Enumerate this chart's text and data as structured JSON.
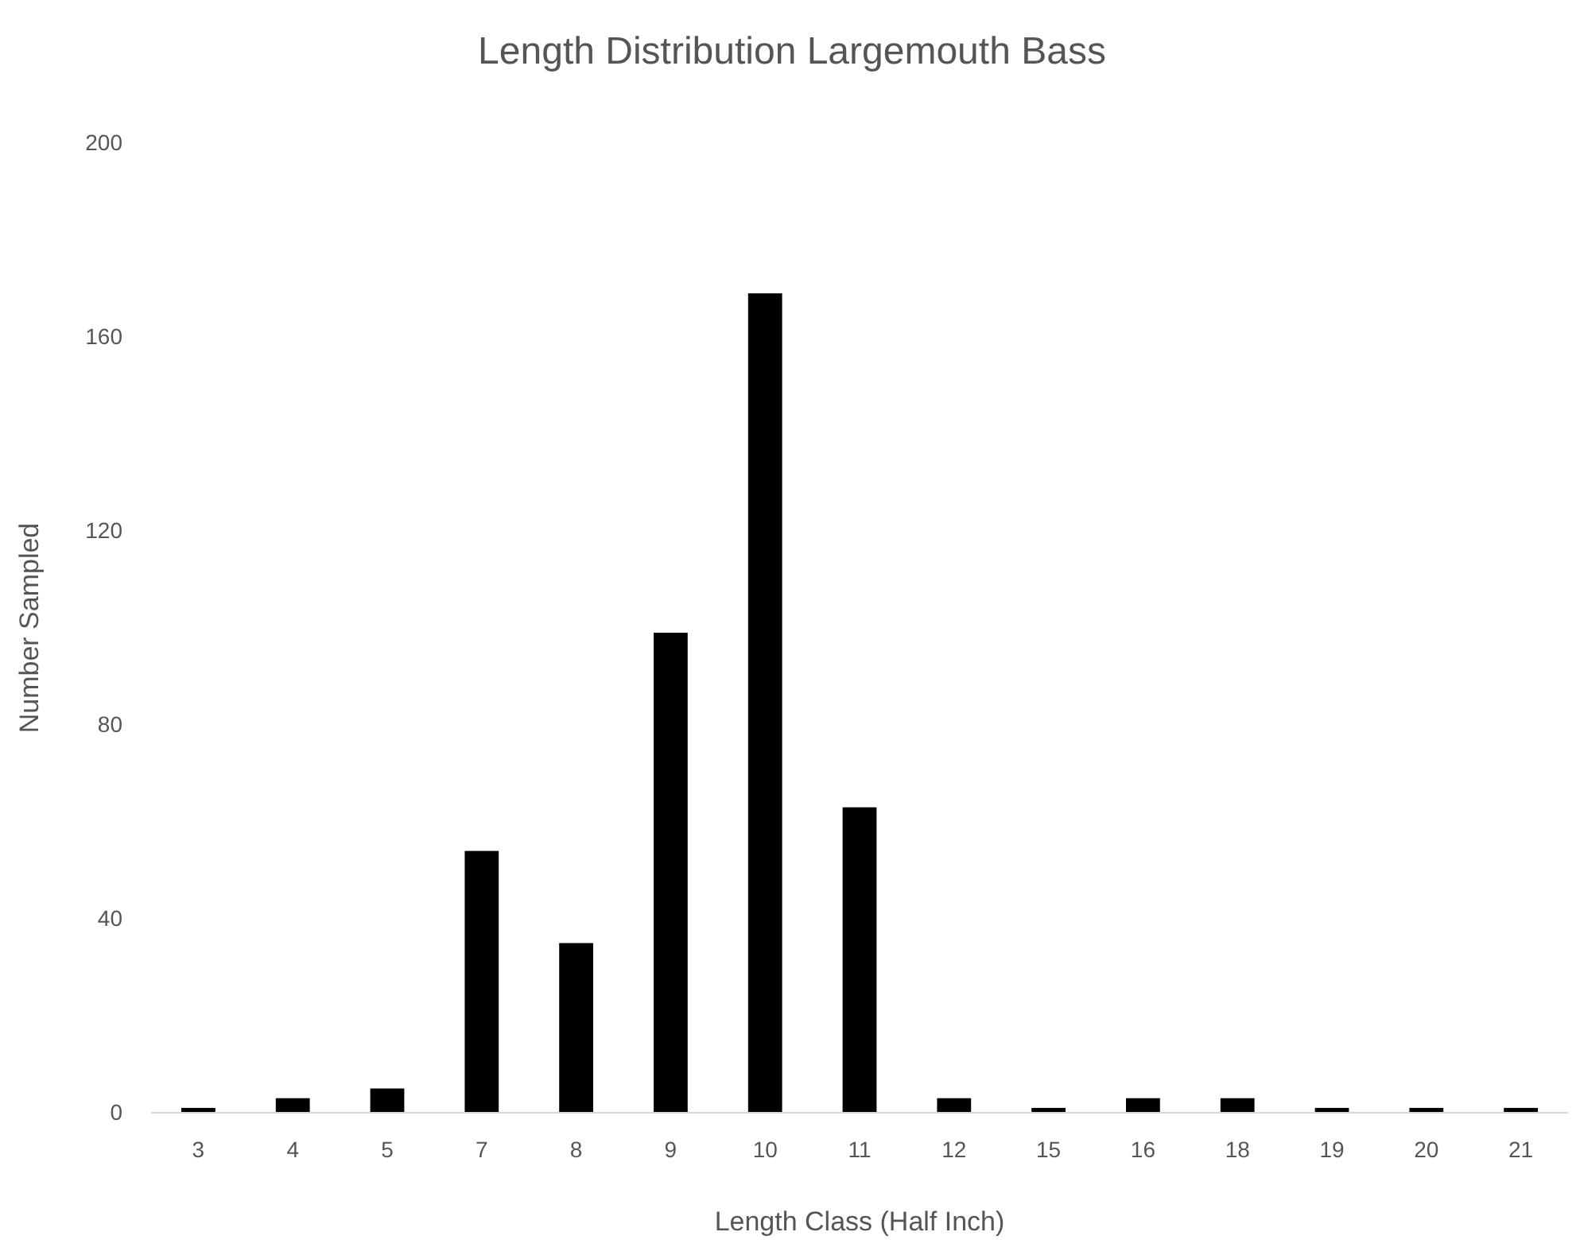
{
  "chart_data": {
    "type": "bar",
    "title": "Length Distribution Largemouth Bass",
    "xlabel": "Length Class (Half Inch)",
    "ylabel": "Number Sampled",
    "categories": [
      "3",
      "4",
      "5",
      "7",
      "8",
      "9",
      "10",
      "11",
      "12",
      "15",
      "16",
      "18",
      "19",
      "20",
      "21"
    ],
    "values": [
      1,
      3,
      5,
      54,
      35,
      99,
      169,
      63,
      3,
      1,
      3,
      3,
      1,
      1,
      1
    ],
    "color": "#000000",
    "ylim": [
      0,
      200
    ],
    "yticks": [
      0,
      40,
      80,
      120,
      160,
      200
    ],
    "grid": false
  }
}
